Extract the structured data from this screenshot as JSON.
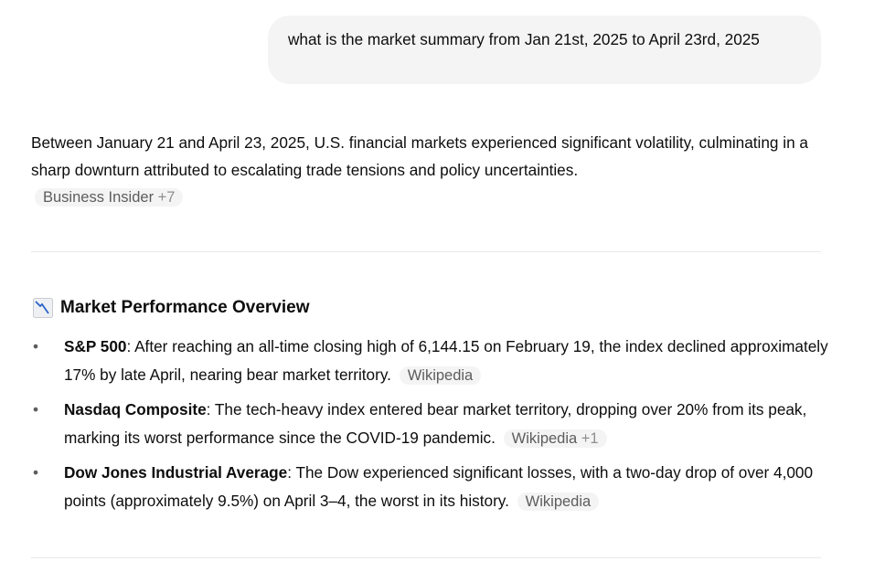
{
  "user_message": "what is the market summary from Jan 21st, 2025 to April 23rd, 2025",
  "intro": {
    "text": "Between January 21 and April 23, 2025, U.S. financial markets experienced significant volatility, culminating in a sharp downturn attributed to escalating trade tensions and policy uncertainties.",
    "source": "Business Insider",
    "source_more": "+7"
  },
  "section": {
    "icon": "chart-decreasing-icon",
    "title": "Market Performance Overview",
    "items": [
      {
        "term": "S&P 500",
        "text": ": After reaching an all-time closing high of 6,144.15 on February 19, the index declined approximately 17% by late April, nearing bear market territory.",
        "source": "Wikipedia",
        "source_more": ""
      },
      {
        "term": "Nasdaq Composite",
        "text": ": The tech-heavy index entered bear market territory, dropping over 20% from its peak, marking its worst performance since the COVID-19 pandemic.",
        "source": "Wikipedia",
        "source_more": "+1"
      },
      {
        "term": "Dow Jones Industrial Average",
        "text": ": The Dow experienced significant losses, with a two-day drop of over 4,000 points (approximately 9.5%) on April 3–4, the worst in its history.",
        "source": "Wikipedia",
        "source_more": ""
      }
    ]
  }
}
